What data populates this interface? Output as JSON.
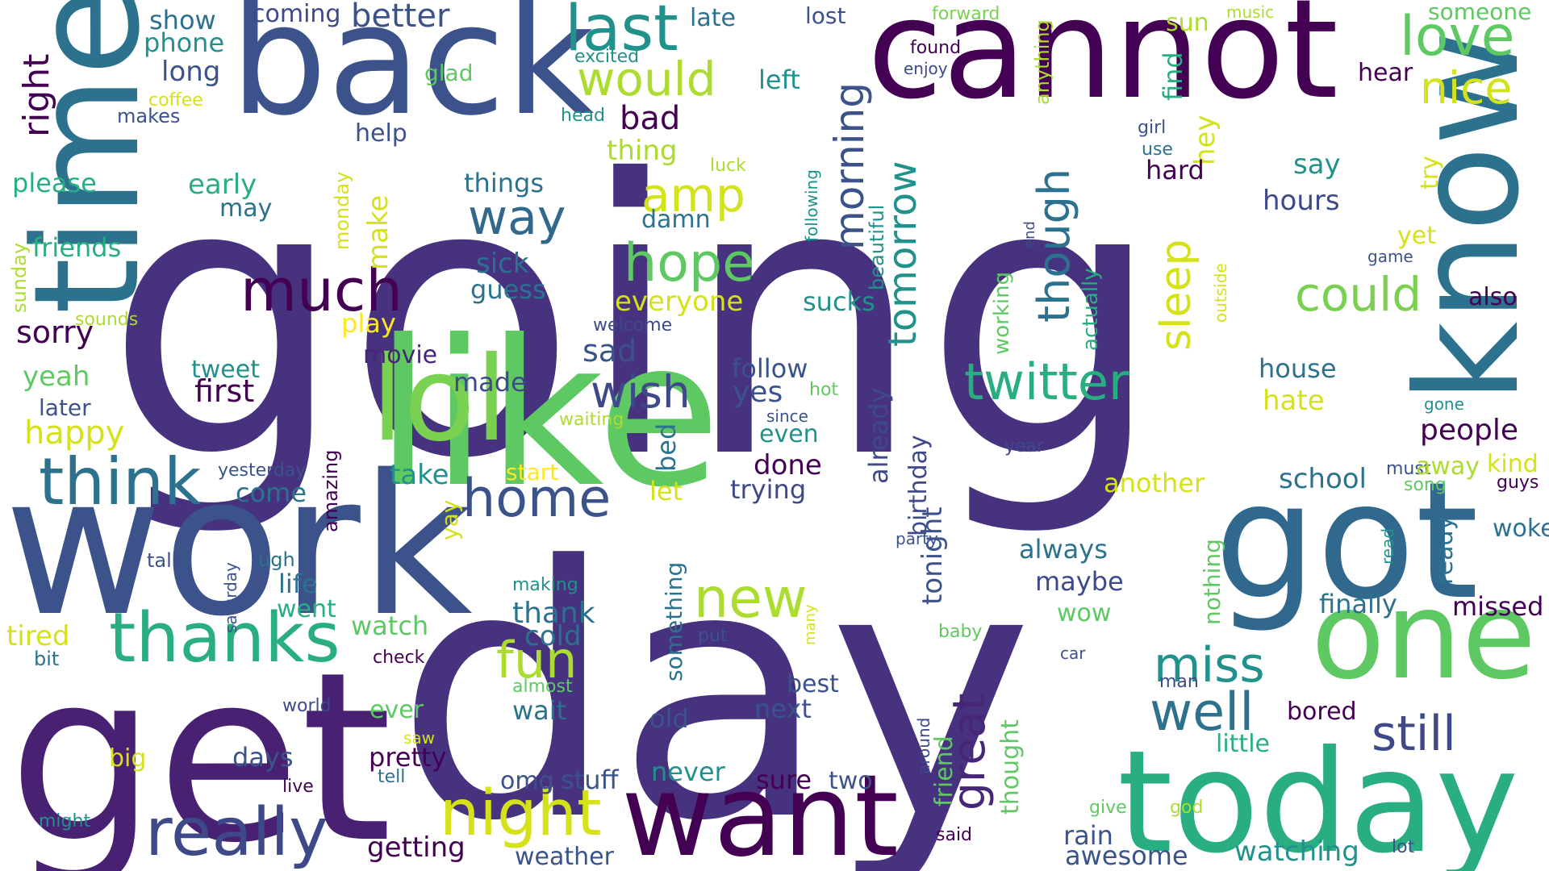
{
  "title": "Word cloud",
  "palette": {
    "c0": "#440154",
    "c1": "#46327e",
    "c2": "#3b528b",
    "c3": "#2c728e",
    "c4": "#21918c",
    "c5": "#28ae80",
    "c6": "#5ec962",
    "c7": "#addc30",
    "c8": "#fde725",
    "c9": "#3e4989"
  },
  "words": [
    {
      "text": "going",
      "color": "#46327e"
    },
    {
      "text": "day",
      "color": "#46327e"
    },
    {
      "text": "get",
      "color": "#482173"
    },
    {
      "text": "work",
      "color": "#3b528b"
    },
    {
      "text": "like",
      "color": "#5ec962"
    },
    {
      "text": "back",
      "color": "#3b528b"
    },
    {
      "text": "cannot",
      "color": "#440154"
    },
    {
      "text": "time",
      "color": "#2c728e"
    },
    {
      "text": "got",
      "color": "#31688e"
    },
    {
      "text": "today",
      "color": "#28ae80"
    },
    {
      "text": "want",
      "color": "#440154"
    },
    {
      "text": "one",
      "color": "#5ec962"
    },
    {
      "text": "know",
      "color": "#2c728e"
    },
    {
      "text": "lol",
      "color": "#7ad151"
    },
    {
      "text": "think",
      "color": "#2c728e"
    },
    {
      "text": "thanks",
      "color": "#28ae80"
    },
    {
      "text": "really",
      "color": "#3e4989"
    },
    {
      "text": "night",
      "color": "#d5e21a"
    },
    {
      "text": "last",
      "color": "#21918c"
    },
    {
      "text": "would",
      "color": "#addc30"
    },
    {
      "text": "love",
      "color": "#5ec962"
    },
    {
      "text": "nice",
      "color": "#d2e21b"
    },
    {
      "text": "home",
      "color": "#3b528b"
    },
    {
      "text": "new",
      "color": "#addc30"
    },
    {
      "text": "much",
      "color": "#440154"
    },
    {
      "text": "twitter",
      "color": "#28ae80"
    },
    {
      "text": "hope",
      "color": "#5ec962"
    },
    {
      "text": "amp",
      "color": "#d2e21b"
    },
    {
      "text": "way",
      "color": "#31688e"
    },
    {
      "text": "fun",
      "color": "#addc30"
    },
    {
      "text": "could",
      "color": "#7ad151"
    },
    {
      "text": "still",
      "color": "#3e4989"
    },
    {
      "text": "well",
      "color": "#2c728e"
    },
    {
      "text": "miss",
      "color": "#21918c"
    },
    {
      "text": "great",
      "color": "#482677"
    },
    {
      "text": "wish",
      "color": "#3e4989"
    },
    {
      "text": "morning",
      "color": "#3b528b"
    },
    {
      "text": "tomorrow",
      "color": "#21918c"
    },
    {
      "text": "though",
      "color": "#2c728e"
    },
    {
      "text": "sleep",
      "color": "#d5e21a"
    },
    {
      "text": "right",
      "color": "#440154"
    },
    {
      "text": "better",
      "color": "#3b528b"
    },
    {
      "text": "show",
      "color": "#2c728e"
    },
    {
      "text": "phone",
      "color": "#21918c"
    },
    {
      "text": "long",
      "color": "#3b528b"
    },
    {
      "text": "coming",
      "color": "#3e4989"
    },
    {
      "text": "late",
      "color": "#2c728e"
    },
    {
      "text": "lost",
      "color": "#3b528b"
    },
    {
      "text": "forward",
      "color": "#7ad151"
    },
    {
      "text": "music",
      "color": "#addc30"
    },
    {
      "text": "someone",
      "color": "#5ec962"
    },
    {
      "text": "sun",
      "color": "#addc30"
    },
    {
      "text": "excited",
      "color": "#21918c"
    },
    {
      "text": "found",
      "color": "#440154"
    },
    {
      "text": "enjoy",
      "color": "#3e4989"
    },
    {
      "text": "anything",
      "color": "#addc30"
    },
    {
      "text": "find",
      "color": "#28ae80"
    },
    {
      "text": "hear",
      "color": "#440154"
    },
    {
      "text": "left",
      "color": "#21918c"
    },
    {
      "text": "glad",
      "color": "#5ec962"
    },
    {
      "text": "coffee",
      "color": "#d5e21a"
    },
    {
      "text": "makes",
      "color": "#3b528b"
    },
    {
      "text": "head",
      "color": "#21918c"
    },
    {
      "text": "bad",
      "color": "#440154"
    },
    {
      "text": "girl",
      "color": "#3b528b"
    },
    {
      "text": "use",
      "color": "#2c728e"
    },
    {
      "text": "hey",
      "color": "#d2e21b"
    },
    {
      "text": "help",
      "color": "#3b528b"
    },
    {
      "text": "thing",
      "color": "#addc30"
    },
    {
      "text": "luck",
      "color": "#addc30"
    },
    {
      "text": "following",
      "color": "#21918c"
    },
    {
      "text": "hard",
      "color": "#440154"
    },
    {
      "text": "say",
      "color": "#21918c"
    },
    {
      "text": "try",
      "color": "#d5e21a"
    },
    {
      "text": "hours",
      "color": "#3e4989"
    },
    {
      "text": "please",
      "color": "#28ae80"
    },
    {
      "text": "early",
      "color": "#28ae80"
    },
    {
      "text": "may",
      "color": "#2c728e"
    },
    {
      "text": "things",
      "color": "#2c728e"
    },
    {
      "text": "damn",
      "color": "#2c728e"
    },
    {
      "text": "beautiful",
      "color": "#21918c"
    },
    {
      "text": "end",
      "color": "#3e4989"
    },
    {
      "text": "yet",
      "color": "#d5e21a"
    },
    {
      "text": "game",
      "color": "#3b528b"
    },
    {
      "text": "sunday",
      "color": "#addc30"
    },
    {
      "text": "friends",
      "color": "#28ae80"
    },
    {
      "text": "monday",
      "color": "#d5e21a"
    },
    {
      "text": "make",
      "color": "#d5e21a"
    },
    {
      "text": "sick",
      "color": "#2c728e"
    },
    {
      "text": "guess",
      "color": "#2c728e"
    },
    {
      "text": "working",
      "color": "#5ec962"
    },
    {
      "text": "actually",
      "color": "#28ae80"
    },
    {
      "text": "outside",
      "color": "#d5e21a"
    },
    {
      "text": "also",
      "color": "#440154"
    },
    {
      "text": "sounds",
      "color": "#addc30"
    },
    {
      "text": "sorry",
      "color": "#440154"
    },
    {
      "text": "play",
      "color": "#fde725"
    },
    {
      "text": "everyone",
      "color": "#d5e21a"
    },
    {
      "text": "sucks",
      "color": "#21918c"
    },
    {
      "text": "welcome",
      "color": "#3e4989"
    },
    {
      "text": "movie",
      "color": "#482677"
    },
    {
      "text": "sad",
      "color": "#3b528b"
    },
    {
      "text": "follow",
      "color": "#3b528b"
    },
    {
      "text": "house",
      "color": "#2c728e"
    },
    {
      "text": "yeah",
      "color": "#5ec962"
    },
    {
      "text": "tweet",
      "color": "#21918c"
    },
    {
      "text": "made",
      "color": "#3e4989"
    },
    {
      "text": "yes",
      "color": "#3b528b"
    },
    {
      "text": "hot",
      "color": "#5ec962"
    },
    {
      "text": "gone",
      "color": "#21918c"
    },
    {
      "text": "first",
      "color": "#440154"
    },
    {
      "text": "since",
      "color": "#3b528b"
    },
    {
      "text": "already",
      "color": "#3e4989"
    },
    {
      "text": "hate",
      "color": "#d5e21a"
    },
    {
      "text": "later",
      "color": "#3b528b"
    },
    {
      "text": "waiting",
      "color": "#addc30"
    },
    {
      "text": "people",
      "color": "#440154"
    },
    {
      "text": "happy",
      "color": "#d5e21a"
    },
    {
      "text": "bed",
      "color": "#2c728e"
    },
    {
      "text": "even",
      "color": "#21918c"
    },
    {
      "text": "birthday",
      "color": "#3e4989"
    },
    {
      "text": "year",
      "color": "#3e4989"
    },
    {
      "text": "yesterday",
      "color": "#3b528b"
    },
    {
      "text": "take",
      "color": "#21918c"
    },
    {
      "text": "done",
      "color": "#440154"
    },
    {
      "text": "start",
      "color": "#fde725"
    },
    {
      "text": "another",
      "color": "#d5e21a"
    },
    {
      "text": "must",
      "color": "#3b528b"
    },
    {
      "text": "away",
      "color": "#addc30"
    },
    {
      "text": "kind",
      "color": "#d5e21a"
    },
    {
      "text": "come",
      "color": "#2c728e"
    },
    {
      "text": "amazing",
      "color": "#440154"
    },
    {
      "text": "let",
      "color": "#d5e21a"
    },
    {
      "text": "trying",
      "color": "#3e4989"
    },
    {
      "text": "school",
      "color": "#2c728e"
    },
    {
      "text": "song",
      "color": "#5ec962"
    },
    {
      "text": "guys",
      "color": "#440154"
    },
    {
      "text": "yay",
      "color": "#d5e21a"
    },
    {
      "text": "woke",
      "color": "#2c728e"
    },
    {
      "text": "saturday",
      "color": "#3b528b"
    },
    {
      "text": "ugh",
      "color": "#2c728e"
    },
    {
      "text": "talk",
      "color": "#3b528b"
    },
    {
      "text": "life",
      "color": "#2c728e"
    },
    {
      "text": "went",
      "color": "#28ae80"
    },
    {
      "text": "party",
      "color": "#3b528b"
    },
    {
      "text": "always",
      "color": "#2c728e"
    },
    {
      "text": "read",
      "color": "#21918c"
    },
    {
      "text": "ready",
      "color": "#2c728e"
    },
    {
      "text": "nothing",
      "color": "#5ec962"
    },
    {
      "text": "making",
      "color": "#21918c"
    },
    {
      "text": "maybe",
      "color": "#3e4989"
    },
    {
      "text": "something",
      "color": "#2c728e"
    },
    {
      "text": "thank",
      "color": "#2c728e"
    },
    {
      "text": "finally",
      "color": "#2c728e"
    },
    {
      "text": "missed",
      "color": "#440154"
    },
    {
      "text": "tired",
      "color": "#d5e21a"
    },
    {
      "text": "watch",
      "color": "#5ec962"
    },
    {
      "text": "cold",
      "color": "#2c728e"
    },
    {
      "text": "wow",
      "color": "#5ec962"
    },
    {
      "text": "many",
      "color": "#d5e21a"
    },
    {
      "text": "bit",
      "color": "#2c728e"
    },
    {
      "text": "put",
      "color": "#3b528b"
    },
    {
      "text": "baby",
      "color": "#5ec962"
    },
    {
      "text": "check",
      "color": "#440154"
    },
    {
      "text": "almost",
      "color": "#5ec962"
    },
    {
      "text": "car",
      "color": "#3b528b"
    },
    {
      "text": "man",
      "color": "#3e4989"
    },
    {
      "text": "best",
      "color": "#3b528b"
    },
    {
      "text": "tonight",
      "color": "#3b528b"
    },
    {
      "text": "little",
      "color": "#28ae80"
    },
    {
      "text": "world",
      "color": "#3e4989"
    },
    {
      "text": "ever",
      "color": "#5ec962"
    },
    {
      "text": "next",
      "color": "#3b528b"
    },
    {
      "text": "wait",
      "color": "#2c728e"
    },
    {
      "text": "bored",
      "color": "#440154"
    },
    {
      "text": "old",
      "color": "#3b528b"
    },
    {
      "text": "around",
      "color": "#3e4989"
    },
    {
      "text": "saw",
      "color": "#d5e21a"
    },
    {
      "text": "watching",
      "color": "#21918c"
    },
    {
      "text": "days",
      "color": "#3b528b"
    },
    {
      "text": "pretty",
      "color": "#440154"
    },
    {
      "text": "big",
      "color": "#d5e21a"
    },
    {
      "text": "friend",
      "color": "#5ec962"
    },
    {
      "text": "thought",
      "color": "#5ec962"
    },
    {
      "text": "tell",
      "color": "#2c728e"
    },
    {
      "text": "never",
      "color": "#21918c"
    },
    {
      "text": "omg",
      "color": "#3b528b"
    },
    {
      "text": "stuff",
      "color": "#3b528b"
    },
    {
      "text": "sure",
      "color": "#440154"
    },
    {
      "text": "two",
      "color": "#3b528b"
    },
    {
      "text": "live",
      "color": "#440154"
    },
    {
      "text": "rain",
      "color": "#3b528b"
    },
    {
      "text": "give",
      "color": "#5ec962"
    },
    {
      "text": "god",
      "color": "#addc30"
    },
    {
      "text": "lot",
      "color": "#3b528b"
    },
    {
      "text": "might",
      "color": "#21918c"
    },
    {
      "text": "getting",
      "color": "#440154"
    },
    {
      "text": "weather",
      "color": "#3b528b"
    },
    {
      "text": "said",
      "color": "#440154"
    },
    {
      "text": "awesome",
      "color": "#3b528b"
    }
  ]
}
